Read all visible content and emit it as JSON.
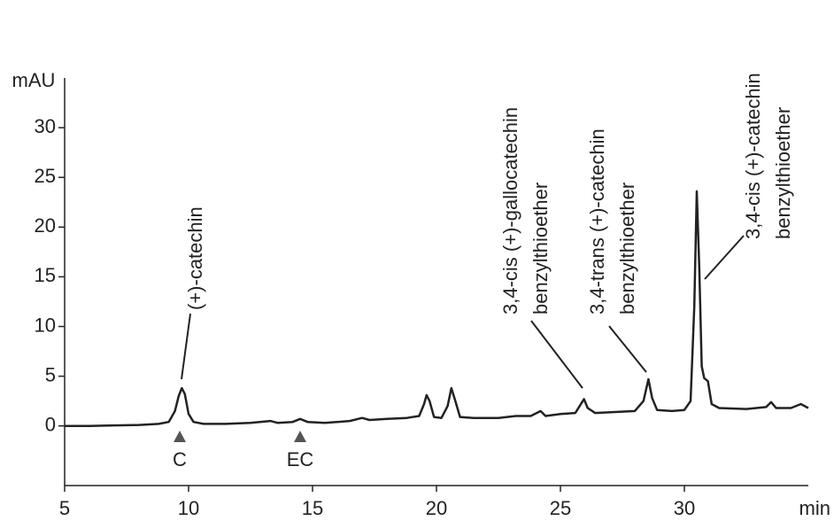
{
  "chart_data": {
    "type": "line",
    "ylabel": "mAU",
    "xlabel": "min",
    "xlim": [
      5,
      35
    ],
    "ylim": [
      -6,
      35
    ],
    "xticks": [
      5,
      10,
      15,
      20,
      25,
      30
    ],
    "yticks": [
      0,
      5,
      10,
      15,
      20,
      25,
      30
    ],
    "grid": false,
    "color": "#222222",
    "x": [
      5.0,
      6.0,
      7.0,
      8.0,
      8.8,
      9.2,
      9.45,
      9.6,
      9.73,
      9.85,
      10.0,
      10.2,
      10.6,
      11.5,
      12.5,
      13.3,
      13.6,
      14.2,
      14.5,
      14.8,
      15.5,
      16.5,
      17.0,
      17.3,
      18.0,
      18.8,
      19.3,
      19.5,
      19.6,
      19.72,
      19.9,
      20.2,
      20.45,
      20.6,
      20.75,
      20.95,
      21.5,
      22.5,
      23.2,
      23.8,
      24.2,
      24.4,
      25.0,
      25.6,
      25.85,
      25.95,
      26.1,
      26.4,
      27.2,
      28.0,
      28.35,
      28.55,
      28.7,
      28.9,
      29.5,
      30.0,
      30.25,
      30.4,
      30.5,
      30.6,
      30.7,
      30.8,
      30.95,
      31.1,
      31.4,
      32.5,
      33.3,
      33.5,
      33.7,
      34.3,
      34.7,
      35.0
    ],
    "values": [
      0.0,
      0.0,
      0.05,
      0.1,
      0.2,
      0.4,
      1.5,
      3.0,
      3.8,
      3.2,
      1.2,
      0.4,
      0.2,
      0.2,
      0.3,
      0.5,
      0.3,
      0.4,
      0.7,
      0.4,
      0.3,
      0.5,
      0.8,
      0.6,
      0.7,
      0.8,
      1.0,
      2.2,
      3.1,
      2.5,
      0.9,
      0.8,
      2.0,
      3.8,
      2.6,
      0.9,
      0.8,
      0.8,
      1.0,
      1.0,
      1.5,
      1.0,
      1.2,
      1.3,
      2.3,
      2.7,
      1.8,
      1.3,
      1.4,
      1.5,
      2.5,
      4.7,
      2.8,
      1.6,
      1.5,
      1.6,
      2.5,
      12.0,
      23.6,
      16.0,
      6.0,
      4.8,
      4.5,
      2.2,
      1.8,
      1.7,
      1.9,
      2.4,
      1.8,
      1.8,
      2.2,
      1.8
    ],
    "annotations": [
      {
        "lines": [
          "(+)-catechin"
        ]
      },
      {
        "lines": [
          "3,4-cis (+)-gallocatechin",
          "benzylthioether"
        ]
      },
      {
        "lines": [
          "3,4-trans (+)-catechin",
          "benzylthioether"
        ]
      },
      {
        "lines": [
          "3,4-cis (+)-catechin",
          "benzylthioether"
        ]
      }
    ],
    "markers": [
      {
        "label": "C"
      },
      {
        "label": "EC"
      }
    ]
  }
}
